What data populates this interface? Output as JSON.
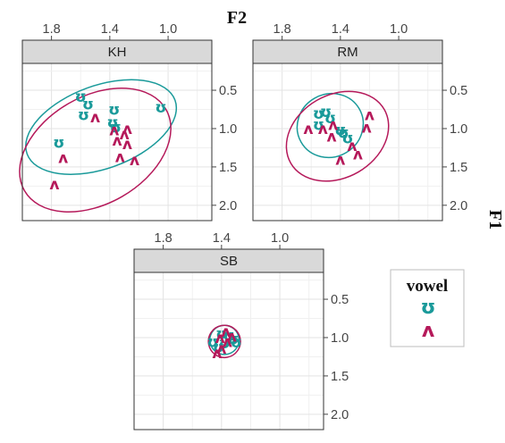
{
  "chart_data": {
    "type": "scatter",
    "x_axis_title": "F2",
    "y_axis_title": "F1",
    "x_reversed": true,
    "y_reversed": true,
    "xlim": [
      2.0,
      0.7
    ],
    "ylim": [
      0.15,
      2.2
    ],
    "x_ticks": [
      "1.8",
      "1.4",
      "1.0"
    ],
    "y_ticks": [
      "0.5",
      "1.0",
      "1.5",
      "2.0"
    ],
    "grid": true,
    "legend": {
      "title": "vowel",
      "placement": "right",
      "entries": [
        {
          "label": "ʊ",
          "color": "#1a9a9a"
        },
        {
          "label": "ʌ",
          "color": "#b5195a"
        }
      ]
    },
    "panels": [
      {
        "name": "KH",
        "points": [
          {
            "vowel": "ʊ",
            "x": 1.6,
            "y": 0.58
          },
          {
            "vowel": "ʊ",
            "x": 1.55,
            "y": 0.68
          },
          {
            "vowel": "ʊ",
            "x": 1.58,
            "y": 0.82
          },
          {
            "vowel": "ʊ",
            "x": 1.37,
            "y": 0.75
          },
          {
            "vowel": "ʊ",
            "x": 1.38,
            "y": 0.92
          },
          {
            "vowel": "ʊ",
            "x": 1.36,
            "y": 0.98
          },
          {
            "vowel": "ʊ",
            "x": 1.05,
            "y": 0.72
          },
          {
            "vowel": "ʊ",
            "x": 1.75,
            "y": 1.18
          },
          {
            "vowel": "ʌ",
            "x": 1.5,
            "y": 0.85
          },
          {
            "vowel": "ʌ",
            "x": 1.37,
            "y": 1.02
          },
          {
            "vowel": "ʌ",
            "x": 1.28,
            "y": 1.0
          },
          {
            "vowel": "ʌ",
            "x": 1.3,
            "y": 1.07
          },
          {
            "vowel": "ʌ",
            "x": 1.35,
            "y": 1.15
          },
          {
            "vowel": "ʌ",
            "x": 1.28,
            "y": 1.2
          },
          {
            "vowel": "ʌ",
            "x": 1.72,
            "y": 1.38
          },
          {
            "vowel": "ʌ",
            "x": 1.33,
            "y": 1.37
          },
          {
            "vowel": "ʌ",
            "x": 1.23,
            "y": 1.41
          },
          {
            "vowel": "ʌ",
            "x": 1.78,
            "y": 1.72
          }
        ]
      },
      {
        "name": "RM",
        "points": [
          {
            "vowel": "ʊ",
            "x": 1.55,
            "y": 0.8
          },
          {
            "vowel": "ʊ",
            "x": 1.5,
            "y": 0.78
          },
          {
            "vowel": "ʊ",
            "x": 1.47,
            "y": 0.86
          },
          {
            "vowel": "ʊ",
            "x": 1.55,
            "y": 0.95
          },
          {
            "vowel": "ʊ",
            "x": 1.4,
            "y": 1.02
          },
          {
            "vowel": "ʊ",
            "x": 1.35,
            "y": 1.12
          },
          {
            "vowel": "ʊ",
            "x": 1.38,
            "y": 1.05
          },
          {
            "vowel": "ʌ",
            "x": 1.62,
            "y": 1.0
          },
          {
            "vowel": "ʌ",
            "x": 1.52,
            "y": 1.0
          },
          {
            "vowel": "ʌ",
            "x": 1.45,
            "y": 0.95
          },
          {
            "vowel": "ʌ",
            "x": 1.46,
            "y": 1.1
          },
          {
            "vowel": "ʌ",
            "x": 1.2,
            "y": 0.82
          },
          {
            "vowel": "ʌ",
            "x": 1.22,
            "y": 0.98
          },
          {
            "vowel": "ʌ",
            "x": 1.32,
            "y": 1.22
          },
          {
            "vowel": "ʌ",
            "x": 1.28,
            "y": 1.33
          },
          {
            "vowel": "ʌ",
            "x": 1.4,
            "y": 1.4
          }
        ]
      },
      {
        "name": "SB",
        "points": [
          {
            "vowel": "ʊ",
            "x": 1.4,
            "y": 0.95
          },
          {
            "vowel": "ʊ",
            "x": 1.35,
            "y": 0.97
          },
          {
            "vowel": "ʊ",
            "x": 1.32,
            "y": 1.02
          },
          {
            "vowel": "ʊ",
            "x": 1.46,
            "y": 1.05
          },
          {
            "vowel": "ʊ",
            "x": 1.38,
            "y": 1.07
          },
          {
            "vowel": "ʊ",
            "x": 1.3,
            "y": 1.06
          },
          {
            "vowel": "ʊ",
            "x": 1.42,
            "y": 1.12
          },
          {
            "vowel": "ʌ",
            "x": 1.37,
            "y": 0.92
          },
          {
            "vowel": "ʌ",
            "x": 1.33,
            "y": 0.98
          },
          {
            "vowel": "ʌ",
            "x": 1.41,
            "y": 1.0
          },
          {
            "vowel": "ʌ",
            "x": 1.36,
            "y": 1.05
          },
          {
            "vowel": "ʌ",
            "x": 1.4,
            "y": 1.14
          },
          {
            "vowel": "ʌ",
            "x": 1.43,
            "y": 1.2
          }
        ]
      }
    ],
    "ellipses": [
      {
        "panel": "KH",
        "vowel": "ʊ",
        "cx": 1.46,
        "cy": 0.98,
        "rx": 0.54,
        "ry": 0.54,
        "angle": -20
      },
      {
        "panel": "KH",
        "vowel": "ʌ",
        "cx": 1.5,
        "cy": 1.28,
        "rx": 0.56,
        "ry": 0.7,
        "angle": -30
      },
      {
        "panel": "RM",
        "vowel": "ʊ",
        "cx": 1.47,
        "cy": 0.96,
        "rx": 0.23,
        "ry": 0.41,
        "angle": -30
      },
      {
        "panel": "RM",
        "vowel": "ʌ",
        "cx": 1.42,
        "cy": 1.1,
        "rx": 0.37,
        "ry": 0.54,
        "angle": -30
      },
      {
        "panel": "SB",
        "vowel": "ʊ",
        "cx": 1.38,
        "cy": 1.03,
        "rx": 0.1,
        "ry": 0.19,
        "angle": -15
      },
      {
        "panel": "SB",
        "vowel": "ʌ",
        "cx": 1.38,
        "cy": 1.05,
        "rx": 0.11,
        "ry": 0.21,
        "angle": -10
      }
    ]
  }
}
